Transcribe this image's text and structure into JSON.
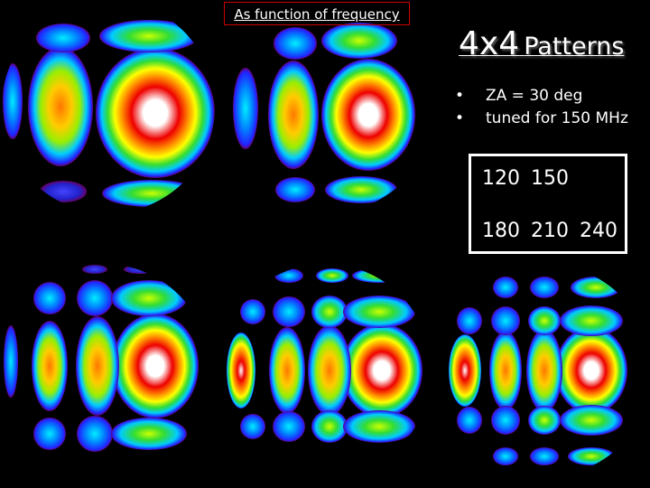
{
  "header": {
    "link": "As function of frequency",
    "title_main": "4x4",
    "title_rest": "Patterns"
  },
  "bullets": [
    "ZA = 30 deg",
    "tuned for 150 MHz"
  ],
  "frequencies": {
    "row1": [
      "120",
      "150"
    ],
    "row2": [
      "180",
      "210",
      "240"
    ]
  }
}
